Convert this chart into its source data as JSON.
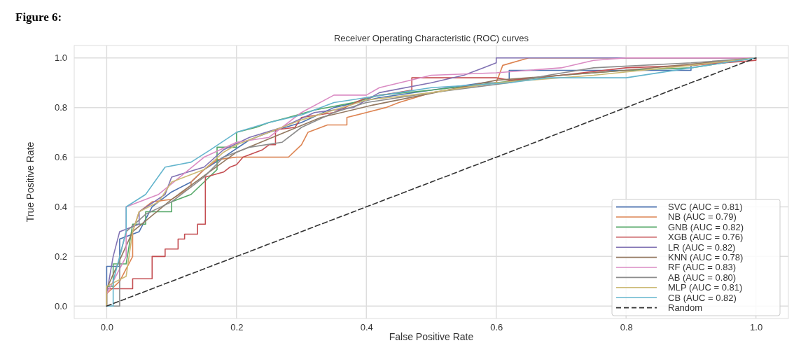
{
  "chart_data": {
    "type": "line",
    "title": "Receiver Operating Characteristic (ROC) curves",
    "xlabel": "False Positive Rate",
    "ylabel": "True Positive Rate",
    "annotations": [
      "Figure 6:"
    ],
    "xlim": [
      -0.05,
      1.05
    ],
    "ylim": [
      -0.05,
      1.05
    ],
    "xticks": [
      {
        "value": 0,
        "label": "0.0"
      },
      {
        "value": 0.2,
        "label": "0.2"
      },
      {
        "value": 0.4,
        "label": "0.4"
      },
      {
        "value": 0.6,
        "label": "0.6"
      },
      {
        "value": 0.8,
        "label": "0.8"
      },
      {
        "value": 1,
        "label": "1.0"
      }
    ],
    "yticks": [
      {
        "value": 0,
        "label": "0.0"
      },
      {
        "value": 0.2,
        "label": "0.2"
      },
      {
        "value": 0.4,
        "label": "0.4"
      },
      {
        "value": 0.6,
        "label": "0.6"
      },
      {
        "value": 0.8,
        "label": "0.8"
      },
      {
        "value": 1,
        "label": "1.0"
      }
    ],
    "grid": true,
    "legend": "bottom right",
    "series": [
      {
        "name": "SVC (AUC = 0.81)",
        "color": "#4c72b0",
        "x": [
          0,
          0,
          0.02,
          0.02,
          0.05,
          0.07,
          0.1,
          0.13,
          0.15,
          0.18,
          0.22,
          0.25,
          0.3,
          0.35,
          0.42,
          0.5,
          0.58,
          0.62,
          0.62,
          0.9,
          0.9,
          1
        ],
        "values": [
          0,
          0.16,
          0.16,
          0.27,
          0.3,
          0.4,
          0.46,
          0.5,
          0.55,
          0.6,
          0.67,
          0.7,
          0.74,
          0.8,
          0.84,
          0.87,
          0.9,
          0.9,
          0.95,
          0.95,
          0.97,
          1
        ]
      },
      {
        "name": "NB (AUC = 0.79)",
        "color": "#dd8452",
        "x": [
          0,
          0.02,
          0.04,
          0.04,
          0.05,
          0.07,
          0.1,
          0.13,
          0.13,
          0.15,
          0.17,
          0.2,
          0.28,
          0.3,
          0.31,
          0.34,
          0.37,
          0.37,
          0.4,
          0.43,
          0.45,
          0.5,
          0.55,
          0.6,
          0.61,
          0.65,
          1
        ],
        "values": [
          0.05,
          0.1,
          0.2,
          0.3,
          0.38,
          0.42,
          0.43,
          0.48,
          0.5,
          0.55,
          0.59,
          0.6,
          0.6,
          0.65,
          0.7,
          0.73,
          0.73,
          0.76,
          0.78,
          0.8,
          0.82,
          0.86,
          0.88,
          0.9,
          0.97,
          1,
          1
        ]
      },
      {
        "name": "GNB (AUC = 0.82)",
        "color": "#55a868",
        "x": [
          0,
          0,
          0.01,
          0.01,
          0.03,
          0.04,
          0.06,
          0.06,
          0.1,
          0.1,
          0.13,
          0.15,
          0.17,
          0.17,
          0.2,
          0.2,
          0.23,
          0.25,
          0.28,
          0.32,
          0.38,
          0.42,
          0.5,
          0.6,
          0.7,
          0.8,
          0.9,
          1
        ],
        "values": [
          0,
          0.08,
          0.08,
          0.17,
          0.17,
          0.33,
          0.33,
          0.38,
          0.38,
          0.42,
          0.45,
          0.5,
          0.55,
          0.64,
          0.64,
          0.7,
          0.72,
          0.74,
          0.76,
          0.79,
          0.82,
          0.85,
          0.87,
          0.9,
          0.93,
          0.95,
          0.96,
          1
        ]
      },
      {
        "name": "XGB (AUC = 0.76)",
        "color": "#c44e52",
        "x": [
          0,
          0,
          0.04,
          0.04,
          0.07,
          0.07,
          0.09,
          0.09,
          0.11,
          0.11,
          0.12,
          0.12,
          0.14,
          0.14,
          0.152,
          0.152,
          0.18,
          0.19,
          0.2,
          0.21,
          0.24,
          0.25,
          0.26,
          0.26,
          0.29,
          0.3,
          0.35,
          0.4,
          0.47,
          0.47,
          0.6,
          0.62,
          0.7,
          0.8,
          0.9,
          1,
          1
        ],
        "values": [
          0,
          0.07,
          0.07,
          0.11,
          0.11,
          0.2,
          0.2,
          0.23,
          0.23,
          0.27,
          0.27,
          0.29,
          0.29,
          0.33,
          0.33,
          0.52,
          0.54,
          0.56,
          0.57,
          0.6,
          0.63,
          0.65,
          0.65,
          0.71,
          0.72,
          0.76,
          0.78,
          0.84,
          0.87,
          0.92,
          0.92,
          0.91,
          0.93,
          0.96,
          0.97,
          0.99,
          1
        ]
      },
      {
        "name": "LR (AUC = 0.82)",
        "color": "#8172b3",
        "x": [
          0,
          0.01,
          0.02,
          0.05,
          0.05,
          0.09,
          0.1,
          0.15,
          0.18,
          0.22,
          0.27,
          0.32,
          0.38,
          0.42,
          0.5,
          0.55,
          0.58,
          0.6,
          0.6,
          1
        ],
        "values": [
          0.05,
          0.2,
          0.3,
          0.33,
          0.38,
          0.45,
          0.52,
          0.56,
          0.63,
          0.68,
          0.72,
          0.78,
          0.8,
          0.86,
          0.9,
          0.93,
          0.96,
          0.98,
          1,
          1
        ]
      },
      {
        "name": "KNN (AUC = 0.78)",
        "color": "#937860",
        "x": [
          0,
          0.04,
          0.1,
          0.2,
          0.33,
          0.41,
          0.6,
          0.8,
          1
        ],
        "values": [
          0.07,
          0.3,
          0.43,
          0.62,
          0.76,
          0.81,
          0.91,
          0.95,
          1
        ]
      },
      {
        "name": "RF (AUC = 0.83)",
        "color": "#da8bc3",
        "x": [
          0,
          0.02,
          0.03,
          0.03,
          0.08,
          0.15,
          0.2,
          0.25,
          0.27,
          0.3,
          0.35,
          0.4,
          0.42,
          0.5,
          0.6,
          0.7,
          0.75,
          0.8,
          1
        ],
        "values": [
          0.05,
          0.15,
          0.2,
          0.4,
          0.45,
          0.6,
          0.66,
          0.68,
          0.72,
          0.78,
          0.85,
          0.85,
          0.88,
          0.93,
          0.94,
          0.96,
          0.99,
          1,
          1
        ]
      },
      {
        "name": "AB (AUC = 0.80)",
        "color": "#8c8c8c",
        "x": [
          0,
          0.02,
          0.02,
          0.03,
          0.06,
          0.1,
          0.13,
          0.15,
          0.18,
          0.22,
          0.27,
          0.3,
          0.35,
          0.4,
          0.5,
          0.62,
          0.68,
          0.75,
          0.9,
          1
        ],
        "values": [
          0,
          0,
          0.2,
          0.3,
          0.37,
          0.42,
          0.48,
          0.52,
          0.6,
          0.64,
          0.66,
          0.72,
          0.78,
          0.82,
          0.86,
          0.9,
          0.93,
          0.96,
          0.98,
          1
        ]
      },
      {
        "name": "MLP (AUC = 0.81)",
        "color": "#ccb974",
        "x": [
          0,
          0,
          0.03,
          0.04,
          0.05,
          0.08,
          0.1,
          0.15,
          0.18,
          0.2,
          0.25,
          0.3,
          0.35,
          0.4,
          0.5,
          0.6,
          0.75,
          0.9,
          1
        ],
        "values": [
          0,
          0.08,
          0.12,
          0.3,
          0.38,
          0.42,
          0.5,
          0.55,
          0.62,
          0.65,
          0.7,
          0.75,
          0.79,
          0.83,
          0.86,
          0.9,
          0.93,
          0.97,
          1
        ]
      },
      {
        "name": "CB (AUC = 0.82)",
        "color": "#64b5cd",
        "x": [
          0,
          0.01,
          0.01,
          0.03,
          0.03,
          0.06,
          0.09,
          0.13,
          0.16,
          0.2,
          0.25,
          0.3,
          0.35,
          0.45,
          0.5,
          0.62,
          0.68,
          0.8,
          1
        ],
        "values": [
          0,
          0,
          0.1,
          0.3,
          0.4,
          0.45,
          0.56,
          0.58,
          0.63,
          0.7,
          0.74,
          0.77,
          0.82,
          0.86,
          0.88,
          0.9,
          0.92,
          0.92,
          1
        ]
      },
      {
        "name": "Random",
        "color": "#333333",
        "line_style": "dashed",
        "x": [
          0,
          1
        ],
        "values": [
          0,
          1
        ]
      }
    ]
  }
}
